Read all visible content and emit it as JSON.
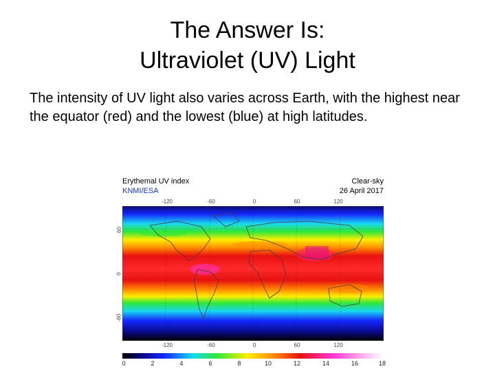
{
  "title": {
    "line1": "The Answer Is:",
    "line2": "Ultraviolet (UV) Light"
  },
  "body_text": "The intensity of UV light also varies across Earth, with the highest near the equator (red) and the lowest (blue) at high latitudes.",
  "figure": {
    "title": "Erythemal UV index",
    "agency": "KNMI/ESA",
    "sky": "Clear-sky",
    "date": "26 April 2017",
    "lon_ticks_top": [
      "-120",
      "-60",
      "0",
      "60",
      "120"
    ],
    "lon_ticks_bottom": [
      "-120",
      "-60",
      "0",
      "60",
      "120"
    ],
    "lat_ticks": [
      "60",
      "0",
      "-60"
    ],
    "colorbar_ticks": [
      "0",
      "2",
      "4",
      "6",
      "8",
      "10",
      "12",
      "14",
      "16",
      "18"
    ],
    "colorbar_range": [
      0,
      18
    ],
    "colors": {
      "low": "#000000",
      "blue": "#1428ff",
      "cyan": "#18d8f0",
      "green": "#2ee83a",
      "yellow": "#ffee00",
      "orange": "#ff8a00",
      "red": "#e81010",
      "magenta": "#ff33cc",
      "high": "#ffffff"
    }
  }
}
